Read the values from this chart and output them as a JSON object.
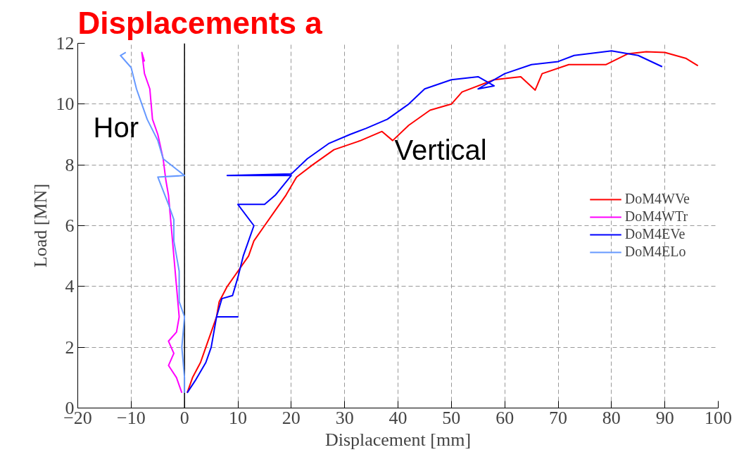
{
  "chart_data": {
    "type": "line",
    "title": "Displacements a",
    "xlabel": "Displacement [mm]",
    "ylabel": "Load [MN]",
    "xlim": [
      -20,
      100
    ],
    "xticks": [
      -20,
      -10,
      0,
      10,
      20,
      30,
      40,
      50,
      60,
      70,
      80,
      90,
      100
    ],
    "ylim": [
      0,
      12
    ],
    "yticks": [
      0,
      2,
      4,
      6,
      8,
      10,
      12
    ],
    "grid": true,
    "legend": "right",
    "line_style": "solid",
    "marker": "none",
    "ref_lines": [
      {
        "axis": "x",
        "value": 0,
        "label": null,
        "color": "#000000"
      }
    ],
    "annotations": [
      "Hor",
      "Vertical"
    ],
    "series": [
      {
        "name": "DoM4WVe",
        "color": "#ff0000",
        "x": [
          0.5,
          1.5,
          3,
          4,
          5,
          6,
          6.5,
          8,
          10,
          12,
          13,
          15,
          17,
          19,
          21,
          24,
          28,
          33,
          37,
          39,
          42,
          46,
          50,
          52,
          58,
          63,
          65.7,
          67,
          72,
          75,
          79,
          83,
          86.5,
          90,
          94,
          96.2
        ],
        "values": [
          0.5,
          1.0,
          1.5,
          2.0,
          2.5,
          3.0,
          3.5,
          4.0,
          4.5,
          5.0,
          5.5,
          6.0,
          6.5,
          7.0,
          7.6,
          8.0,
          8.5,
          8.8,
          9.1,
          8.8,
          9.3,
          9.8,
          10.0,
          10.4,
          10.8,
          10.9,
          10.46,
          11.0,
          11.3,
          11.3,
          11.3,
          11.65,
          11.72,
          11.7,
          11.5,
          11.26
        ]
      },
      {
        "name": "DoM4WTr",
        "color": "#ff00ff",
        "x": [
          -0.5,
          -1.5,
          -3,
          -2,
          -3,
          -1.5,
          -1,
          -1.5,
          -2,
          -2.5,
          -3,
          -3.5,
          -4,
          -5,
          -6,
          -6.5,
          -7.5,
          -8,
          -7.5
        ],
        "values": [
          0.5,
          1.0,
          1.4,
          1.8,
          2.2,
          2.5,
          3.0,
          4.0,
          5.0,
          6.0,
          7.0,
          7.5,
          8.2,
          9.0,
          9.5,
          10.5,
          11.0,
          11.7,
          11.4
        ]
      },
      {
        "name": "DoM4EVe",
        "color": "#0000ff",
        "x": [
          0.5,
          2,
          4,
          5,
          5.5,
          6,
          10,
          6,
          7,
          9,
          10,
          11,
          12,
          13,
          10,
          15,
          17,
          20,
          8,
          20,
          23,
          27,
          31,
          34,
          38,
          42,
          45,
          50,
          55,
          58,
          55,
          60,
          65,
          70,
          73,
          80,
          85,
          89.5
        ],
        "values": [
          0.5,
          0.9,
          1.5,
          2.0,
          2.5,
          3.0,
          3.0,
          3.0,
          3.6,
          3.7,
          4.3,
          5.0,
          5.5,
          6.0,
          6.7,
          6.7,
          7.0,
          7.65,
          7.65,
          7.7,
          8.2,
          8.7,
          9.0,
          9.2,
          9.5,
          10.0,
          10.5,
          10.8,
          10.9,
          10.6,
          10.5,
          11.0,
          11.3,
          11.4,
          11.6,
          11.75,
          11.6,
          11.23
        ]
      },
      {
        "name": "DoM4ELo",
        "color": "#6699ff",
        "x": [
          0,
          0,
          -0.5,
          0,
          -1,
          -1,
          -2,
          -2,
          -3,
          -5,
          0,
          -4,
          -5,
          -7,
          -8,
          -9,
          -10,
          -12,
          -11
        ],
        "values": [
          0.5,
          1.0,
          2.0,
          3.0,
          3.5,
          4.5,
          5.5,
          6.2,
          6.7,
          7.6,
          7.65,
          8.2,
          8.8,
          9.5,
          10.0,
          10.5,
          11.2,
          11.6,
          11.7
        ]
      }
    ]
  }
}
